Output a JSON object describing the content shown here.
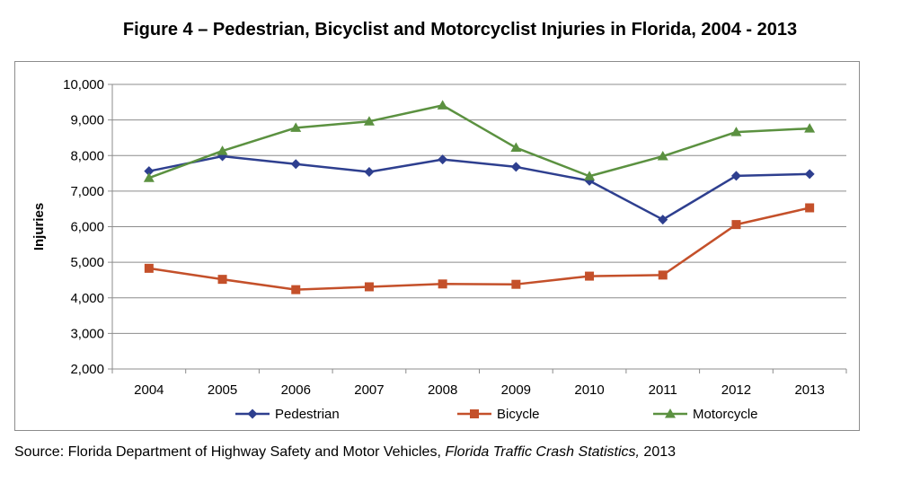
{
  "title": "Figure 4 – Pedestrian, Bicyclist and Motorcyclist Injuries in Florida, 2004 - 2013",
  "source": {
    "prefix": "Source:  Florida Department of Highway Safety and Motor Vehicles, ",
    "publication": "Florida Traffic Crash Statistics,",
    "suffix": " 2013"
  },
  "chart_data": {
    "type": "line",
    "ylabel": "Injuries",
    "xlabel": "",
    "ylim": [
      2000,
      10000
    ],
    "y_ticks": [
      2000,
      3000,
      4000,
      5000,
      6000,
      7000,
      8000,
      9000,
      10000
    ],
    "y_tick_labels": [
      "2,000",
      "3,000",
      "4,000",
      "5,000",
      "6,000",
      "7,000",
      "8,000",
      "9,000",
      "10,000"
    ],
    "categories": [
      "2004",
      "2005",
      "2006",
      "2007",
      "2008",
      "2009",
      "2010",
      "2011",
      "2012",
      "2013"
    ],
    "grid": "horizontal",
    "legend_position": "bottom",
    "series": [
      {
        "name": "Pedestrian",
        "color": "#2e3f8f",
        "marker": "diamond",
        "values": [
          7560,
          7980,
          7760,
          7540,
          7890,
          7680,
          7290,
          6200,
          7430,
          7480
        ]
      },
      {
        "name": "Bicycle",
        "color": "#c4502a",
        "marker": "square",
        "values": [
          4830,
          4520,
          4230,
          4310,
          4390,
          4380,
          4610,
          4640,
          6060,
          6530
        ]
      },
      {
        "name": "Motorcycle",
        "color": "#5b9140",
        "marker": "triangle",
        "values": [
          7370,
          8130,
          8780,
          8960,
          9410,
          8220,
          7420,
          7980,
          8660,
          8760
        ]
      }
    ]
  }
}
